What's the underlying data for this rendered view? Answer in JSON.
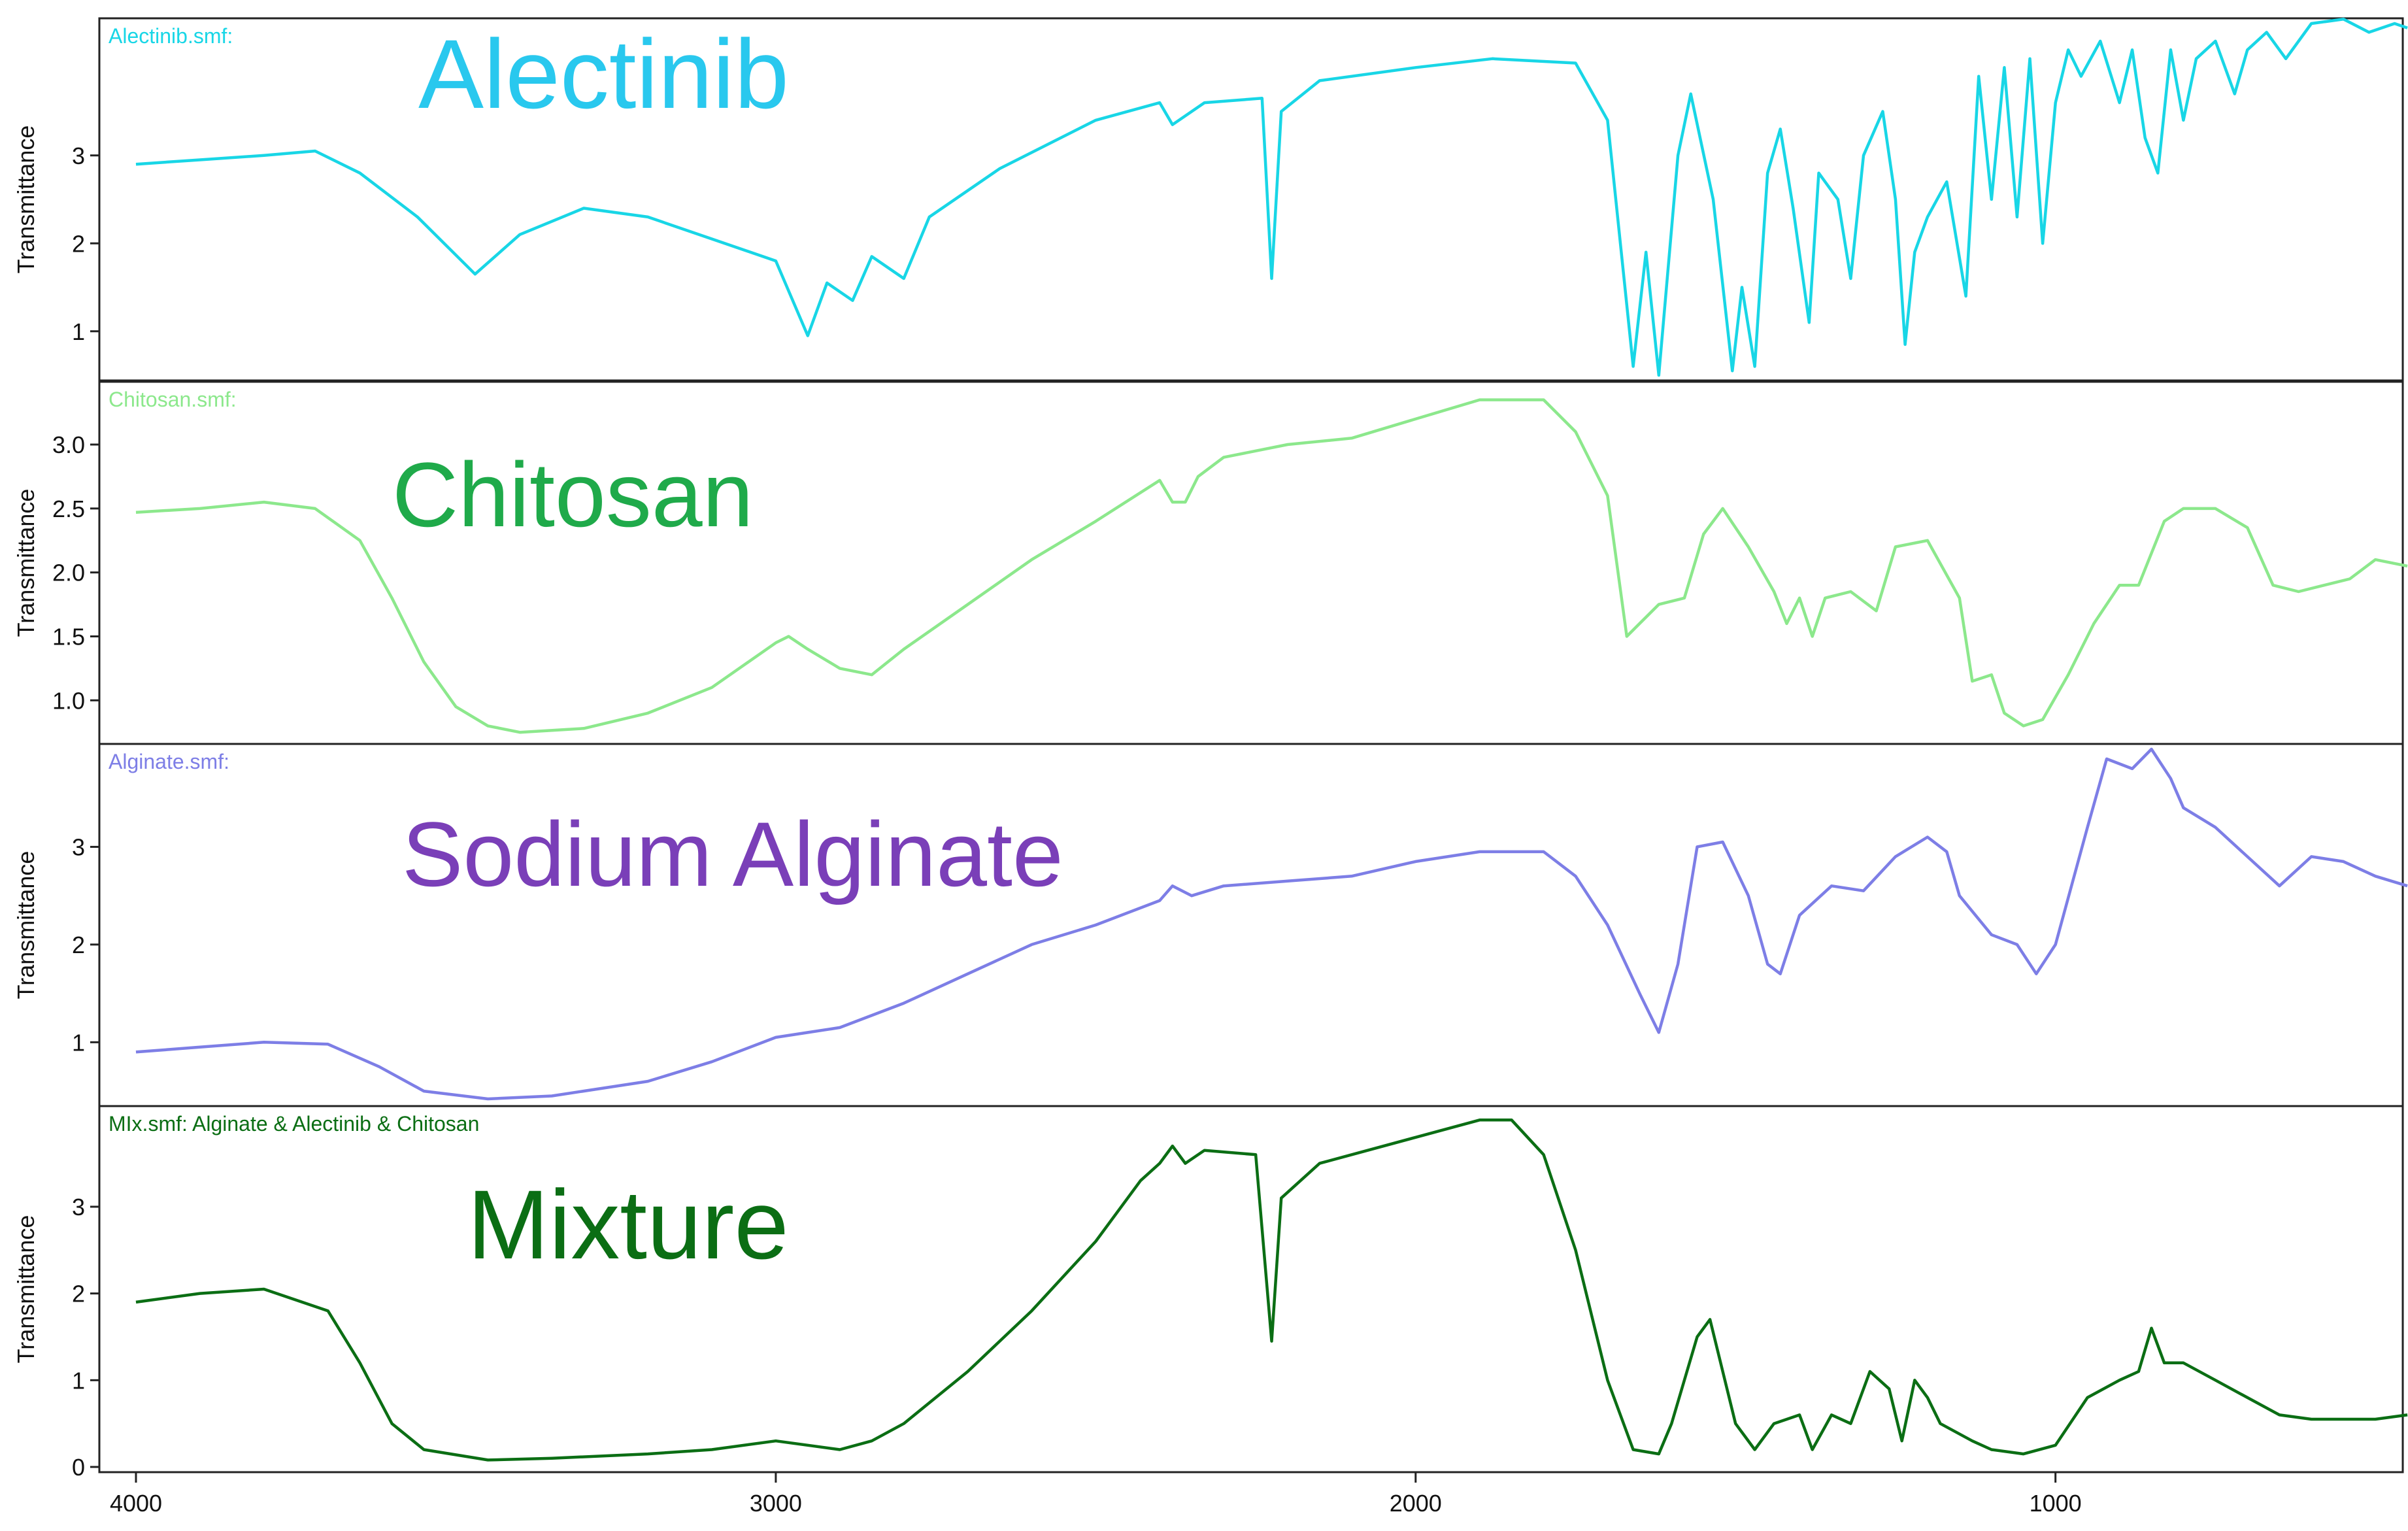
{
  "chart_data": {
    "type": "line",
    "x_axis": {
      "ticks": [
        4000,
        3000,
        2000,
        1000
      ],
      "range": [
        4000,
        400
      ],
      "reversed": true
    },
    "panels": [
      {
        "file_label": "Alectinib.smf:",
        "name": "Alectinib",
        "color": "#18d6e6",
        "name_color": "#29c8ee",
        "ylabel": "Transmittance",
        "ylim": [
          0.5,
          4.5
        ],
        "yticks": [
          1,
          2,
          3
        ],
        "ytick_labels": [
          "1",
          "2",
          "3"
        ],
        "points": [
          [
            4000,
            2.9
          ],
          [
            3900,
            2.95
          ],
          [
            3800,
            3.0
          ],
          [
            3720,
            3.05
          ],
          [
            3650,
            2.8
          ],
          [
            3560,
            2.3
          ],
          [
            3470,
            1.65
          ],
          [
            3400,
            2.1
          ],
          [
            3300,
            2.4
          ],
          [
            3200,
            2.3
          ],
          [
            3100,
            2.05
          ],
          [
            3000,
            1.8
          ],
          [
            2950,
            0.95
          ],
          [
            2920,
            1.55
          ],
          [
            2880,
            1.35
          ],
          [
            2850,
            1.85
          ],
          [
            2800,
            1.6
          ],
          [
            2760,
            2.3
          ],
          [
            2650,
            2.85
          ],
          [
            2500,
            3.4
          ],
          [
            2400,
            3.6
          ],
          [
            2380,
            3.35
          ],
          [
            2330,
            3.6
          ],
          [
            2240,
            3.65
          ],
          [
            2225,
            1.6
          ],
          [
            2210,
            3.5
          ],
          [
            2150,
            3.85
          ],
          [
            2000,
            4.0
          ],
          [
            1880,
            4.1
          ],
          [
            1750,
            4.05
          ],
          [
            1700,
            3.4
          ],
          [
            1660,
            0.6
          ],
          [
            1640,
            1.9
          ],
          [
            1620,
            0.5
          ],
          [
            1590,
            3.0
          ],
          [
            1570,
            3.7
          ],
          [
            1535,
            2.5
          ],
          [
            1505,
            0.55
          ],
          [
            1490,
            1.5
          ],
          [
            1470,
            0.6
          ],
          [
            1450,
            2.8
          ],
          [
            1430,
            3.3
          ],
          [
            1410,
            2.4
          ],
          [
            1385,
            1.1
          ],
          [
            1370,
            2.8
          ],
          [
            1340,
            2.5
          ],
          [
            1320,
            1.6
          ],
          [
            1300,
            3.0
          ],
          [
            1270,
            3.5
          ],
          [
            1250,
            2.5
          ],
          [
            1235,
            0.85
          ],
          [
            1220,
            1.9
          ],
          [
            1200,
            2.3
          ],
          [
            1170,
            2.7
          ],
          [
            1140,
            1.4
          ],
          [
            1120,
            3.9
          ],
          [
            1100,
            2.5
          ],
          [
            1080,
            4.0
          ],
          [
            1060,
            2.3
          ],
          [
            1040,
            4.1
          ],
          [
            1020,
            2.0
          ],
          [
            1000,
            3.6
          ],
          [
            980,
            4.2
          ],
          [
            960,
            3.9
          ],
          [
            930,
            4.3
          ],
          [
            900,
            3.6
          ],
          [
            880,
            4.2
          ],
          [
            860,
            3.2
          ],
          [
            840,
            2.8
          ],
          [
            820,
            4.2
          ],
          [
            800,
            3.4
          ],
          [
            780,
            4.1
          ],
          [
            750,
            4.3
          ],
          [
            720,
            3.7
          ],
          [
            700,
            4.2
          ],
          [
            670,
            4.4
          ],
          [
            640,
            4.1
          ],
          [
            600,
            4.5
          ],
          [
            550,
            4.55
          ],
          [
            510,
            4.4
          ],
          [
            470,
            4.5
          ],
          [
            450,
            4.45
          ]
        ]
      },
      {
        "file_label": "Chitosan.smf:",
        "name": "Chitosan",
        "color": "#8ce88c",
        "name_color": "#1faa4a",
        "ylabel": "Transmittance",
        "ylim": [
          0.7,
          3.45
        ],
        "yticks": [
          1.0,
          1.5,
          2.0,
          2.5,
          3.0
        ],
        "ytick_labels": [
          "1.0",
          "1.5",
          "2.0",
          "2.5",
          "3.0"
        ],
        "points": [
          [
            4000,
            2.47
          ],
          [
            3900,
            2.5
          ],
          [
            3800,
            2.55
          ],
          [
            3720,
            2.5
          ],
          [
            3650,
            2.25
          ],
          [
            3600,
            1.8
          ],
          [
            3550,
            1.3
          ],
          [
            3500,
            0.95
          ],
          [
            3450,
            0.8
          ],
          [
            3400,
            0.75
          ],
          [
            3300,
            0.78
          ],
          [
            3200,
            0.9
          ],
          [
            3100,
            1.1
          ],
          [
            3000,
            1.45
          ],
          [
            2980,
            1.5
          ],
          [
            2950,
            1.4
          ],
          [
            2900,
            1.25
          ],
          [
            2850,
            1.2
          ],
          [
            2800,
            1.4
          ],
          [
            2700,
            1.75
          ],
          [
            2600,
            2.1
          ],
          [
            2500,
            2.4
          ],
          [
            2400,
            2.72
          ],
          [
            2380,
            2.55
          ],
          [
            2360,
            2.55
          ],
          [
            2340,
            2.75
          ],
          [
            2300,
            2.9
          ],
          [
            2200,
            3.0
          ],
          [
            2100,
            3.05
          ],
          [
            2000,
            3.2
          ],
          [
            1900,
            3.35
          ],
          [
            1800,
            3.35
          ],
          [
            1750,
            3.1
          ],
          [
            1700,
            2.6
          ],
          [
            1670,
            1.5
          ],
          [
            1650,
            1.6
          ],
          [
            1620,
            1.75
          ],
          [
            1580,
            1.8
          ],
          [
            1550,
            2.3
          ],
          [
            1520,
            2.5
          ],
          [
            1480,
            2.2
          ],
          [
            1440,
            1.85
          ],
          [
            1420,
            1.6
          ],
          [
            1400,
            1.8
          ],
          [
            1380,
            1.5
          ],
          [
            1360,
            1.8
          ],
          [
            1320,
            1.85
          ],
          [
            1280,
            1.7
          ],
          [
            1250,
            2.2
          ],
          [
            1200,
            2.25
          ],
          [
            1150,
            1.8
          ],
          [
            1130,
            1.15
          ],
          [
            1100,
            1.2
          ],
          [
            1080,
            0.9
          ],
          [
            1050,
            0.8
          ],
          [
            1020,
            0.85
          ],
          [
            980,
            1.2
          ],
          [
            940,
            1.6
          ],
          [
            900,
            1.9
          ],
          [
            870,
            1.9
          ],
          [
            830,
            2.4
          ],
          [
            800,
            2.5
          ],
          [
            750,
            2.5
          ],
          [
            700,
            2.35
          ],
          [
            660,
            1.9
          ],
          [
            620,
            1.85
          ],
          [
            580,
            1.9
          ],
          [
            540,
            1.95
          ],
          [
            500,
            2.1
          ],
          [
            450,
            2.05
          ]
        ]
      },
      {
        "file_label": "Alginate.smf:",
        "name": "Sodium Alginate",
        "color": "#7d7ee6",
        "name_color": "#7a3fb8",
        "ylabel": "Transmittance",
        "ylim": [
          0.4,
          4.0
        ],
        "yticks": [
          1,
          2,
          3
        ],
        "ytick_labels": [
          "1",
          "2",
          "3"
        ],
        "points": [
          [
            4000,
            0.9
          ],
          [
            3900,
            0.95
          ],
          [
            3800,
            1.0
          ],
          [
            3700,
            0.98
          ],
          [
            3620,
            0.75
          ],
          [
            3550,
            0.5
          ],
          [
            3450,
            0.42
          ],
          [
            3350,
            0.45
          ],
          [
            3200,
            0.6
          ],
          [
            3100,
            0.8
          ],
          [
            3000,
            1.05
          ],
          [
            2950,
            1.1
          ],
          [
            2900,
            1.15
          ],
          [
            2800,
            1.4
          ],
          [
            2700,
            1.7
          ],
          [
            2600,
            2.0
          ],
          [
            2500,
            2.2
          ],
          [
            2400,
            2.45
          ],
          [
            2380,
            2.6
          ],
          [
            2350,
            2.5
          ],
          [
            2300,
            2.6
          ],
          [
            2200,
            2.65
          ],
          [
            2100,
            2.7
          ],
          [
            2000,
            2.85
          ],
          [
            1900,
            2.95
          ],
          [
            1800,
            2.95
          ],
          [
            1750,
            2.7
          ],
          [
            1700,
            2.2
          ],
          [
            1650,
            1.5
          ],
          [
            1620,
            1.1
          ],
          [
            1590,
            1.8
          ],
          [
            1560,
            3.0
          ],
          [
            1520,
            3.05
          ],
          [
            1480,
            2.5
          ],
          [
            1450,
            1.8
          ],
          [
            1430,
            1.7
          ],
          [
            1400,
            2.3
          ],
          [
            1350,
            2.6
          ],
          [
            1300,
            2.55
          ],
          [
            1250,
            2.9
          ],
          [
            1200,
            3.1
          ],
          [
            1170,
            2.95
          ],
          [
            1150,
            2.5
          ],
          [
            1100,
            2.1
          ],
          [
            1060,
            2.0
          ],
          [
            1030,
            1.7
          ],
          [
            1000,
            2.0
          ],
          [
            950,
            3.2
          ],
          [
            920,
            3.9
          ],
          [
            880,
            3.8
          ],
          [
            850,
            4.0
          ],
          [
            820,
            3.7
          ],
          [
            800,
            3.4
          ],
          [
            750,
            3.2
          ],
          [
            700,
            2.9
          ],
          [
            650,
            2.6
          ],
          [
            600,
            2.9
          ],
          [
            550,
            2.85
          ],
          [
            500,
            2.7
          ],
          [
            450,
            2.6
          ]
        ]
      },
      {
        "file_label": "MIx.smf: Alginate & Alectinib & Chitosan",
        "name": "Mixture",
        "color": "#0b6e14",
        "name_color": "#0b6e14",
        "ylabel": "Transmittance",
        "ylim": [
          0.0,
          4.1
        ],
        "yticks": [
          0,
          1,
          2,
          3
        ],
        "ytick_labels": [
          "0",
          "1",
          "2",
          "3"
        ],
        "points": [
          [
            4000,
            1.9
          ],
          [
            3900,
            2.0
          ],
          [
            3800,
            2.05
          ],
          [
            3700,
            1.8
          ],
          [
            3650,
            1.2
          ],
          [
            3600,
            0.5
          ],
          [
            3550,
            0.2
          ],
          [
            3450,
            0.08
          ],
          [
            3350,
            0.1
          ],
          [
            3200,
            0.15
          ],
          [
            3100,
            0.2
          ],
          [
            3000,
            0.3
          ],
          [
            2950,
            0.25
          ],
          [
            2900,
            0.2
          ],
          [
            2850,
            0.3
          ],
          [
            2800,
            0.5
          ],
          [
            2700,
            1.1
          ],
          [
            2600,
            1.8
          ],
          [
            2500,
            2.6
          ],
          [
            2430,
            3.3
          ],
          [
            2400,
            3.5
          ],
          [
            2380,
            3.7
          ],
          [
            2360,
            3.5
          ],
          [
            2330,
            3.65
          ],
          [
            2250,
            3.6
          ],
          [
            2225,
            1.45
          ],
          [
            2210,
            3.1
          ],
          [
            2150,
            3.5
          ],
          [
            2000,
            3.8
          ],
          [
            1900,
            4.0
          ],
          [
            1850,
            4.0
          ],
          [
            1800,
            3.6
          ],
          [
            1750,
            2.5
          ],
          [
            1700,
            1.0
          ],
          [
            1660,
            0.2
          ],
          [
            1620,
            0.15
          ],
          [
            1600,
            0.5
          ],
          [
            1560,
            1.5
          ],
          [
            1540,
            1.7
          ],
          [
            1500,
            0.5
          ],
          [
            1470,
            0.2
          ],
          [
            1440,
            0.5
          ],
          [
            1400,
            0.6
          ],
          [
            1380,
            0.2
          ],
          [
            1350,
            0.6
          ],
          [
            1320,
            0.5
          ],
          [
            1290,
            1.1
          ],
          [
            1260,
            0.9
          ],
          [
            1240,
            0.3
          ],
          [
            1220,
            1.0
          ],
          [
            1200,
            0.8
          ],
          [
            1180,
            0.5
          ],
          [
            1130,
            0.3
          ],
          [
            1100,
            0.2
          ],
          [
            1050,
            0.15
          ],
          [
            1000,
            0.25
          ],
          [
            950,
            0.8
          ],
          [
            900,
            1.0
          ],
          [
            870,
            1.1
          ],
          [
            850,
            1.6
          ],
          [
            830,
            1.2
          ],
          [
            800,
            1.2
          ],
          [
            750,
            1.0
          ],
          [
            700,
            0.8
          ],
          [
            650,
            0.6
          ],
          [
            600,
            0.55
          ],
          [
            550,
            0.55
          ],
          [
            500,
            0.55
          ],
          [
            450,
            0.6
          ]
        ]
      }
    ]
  }
}
